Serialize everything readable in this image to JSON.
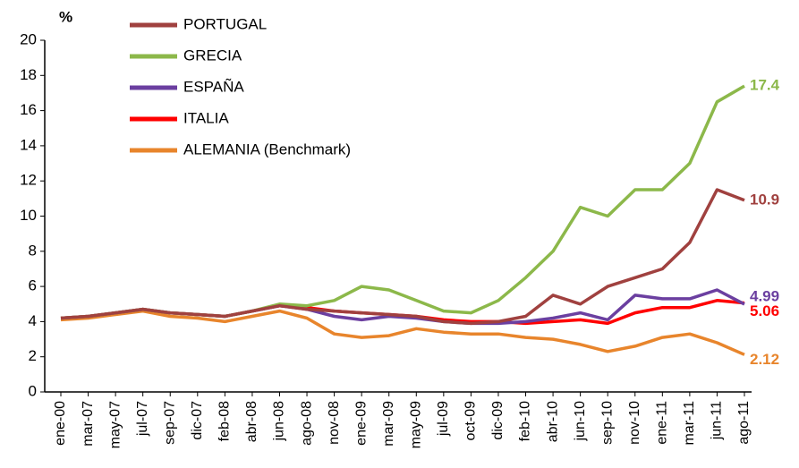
{
  "chart_data": {
    "type": "line",
    "y_axis_label": "%",
    "categories": [
      "ene-00",
      "mar-07",
      "may-07",
      "jul-07",
      "sep-07",
      "dic-07",
      "feb-08",
      "abr-08",
      "jun-08",
      "ago-08",
      "nov-08",
      "ene-09",
      "mar-09",
      "may-09",
      "jul-09",
      "oct-09",
      "dic-09",
      "feb-10",
      "abr-10",
      "jun-10",
      "sep-10",
      "nov-10",
      "ene-11",
      "mar-11",
      "jun-11",
      "ago-11"
    ],
    "series": [
      {
        "name": "PORTUGAL",
        "color": "#a0413f",
        "values": [
          4.2,
          4.3,
          4.5,
          4.7,
          4.5,
          4.4,
          4.3,
          4.6,
          4.9,
          4.7,
          4.6,
          4.5,
          4.4,
          4.3,
          4.0,
          3.9,
          4.0,
          4.3,
          5.5,
          5.0,
          6.0,
          6.5,
          7.0,
          8.5,
          11.5,
          10.9
        ]
      },
      {
        "name": "GRECIA",
        "color": "#8cb84a",
        "values": [
          4.2,
          4.3,
          4.5,
          4.7,
          4.5,
          4.4,
          4.3,
          4.6,
          5.0,
          4.9,
          5.2,
          6.0,
          5.8,
          5.2,
          4.6,
          4.5,
          5.2,
          6.5,
          8.0,
          10.5,
          10.0,
          11.5,
          11.5,
          13.0,
          16.5,
          17.4
        ]
      },
      {
        "name": "ESPAÑA",
        "color": "#6b3fa0",
        "values": [
          4.2,
          4.3,
          4.5,
          4.7,
          4.5,
          4.4,
          4.3,
          4.6,
          4.9,
          4.7,
          4.3,
          4.1,
          4.3,
          4.2,
          4.0,
          3.9,
          3.9,
          4.0,
          4.2,
          4.5,
          4.1,
          5.5,
          5.3,
          5.3,
          5.8,
          4.99
        ]
      },
      {
        "name": "ITALIA",
        "color": "#ff0000",
        "values": [
          4.2,
          4.3,
          4.5,
          4.7,
          4.5,
          4.4,
          4.3,
          4.6,
          4.9,
          4.8,
          4.6,
          4.5,
          4.4,
          4.3,
          4.1,
          4.0,
          4.0,
          3.9,
          4.0,
          4.1,
          3.9,
          4.5,
          4.8,
          4.8,
          5.2,
          5.06
        ]
      },
      {
        "name": "ALEMANIA (Benchmark)",
        "color": "#e8852c",
        "values": [
          4.1,
          4.2,
          4.4,
          4.6,
          4.3,
          4.2,
          4.0,
          4.3,
          4.6,
          4.2,
          3.3,
          3.1,
          3.2,
          3.6,
          3.4,
          3.3,
          3.3,
          3.1,
          3.0,
          2.7,
          2.3,
          2.6,
          3.1,
          3.3,
          2.8,
          2.12
        ]
      }
    ],
    "ylim": [
      0,
      20
    ],
    "yticks": [
      0,
      2,
      4,
      6,
      8,
      10,
      12,
      14,
      16,
      18,
      20
    ],
    "legend": "upper left"
  }
}
